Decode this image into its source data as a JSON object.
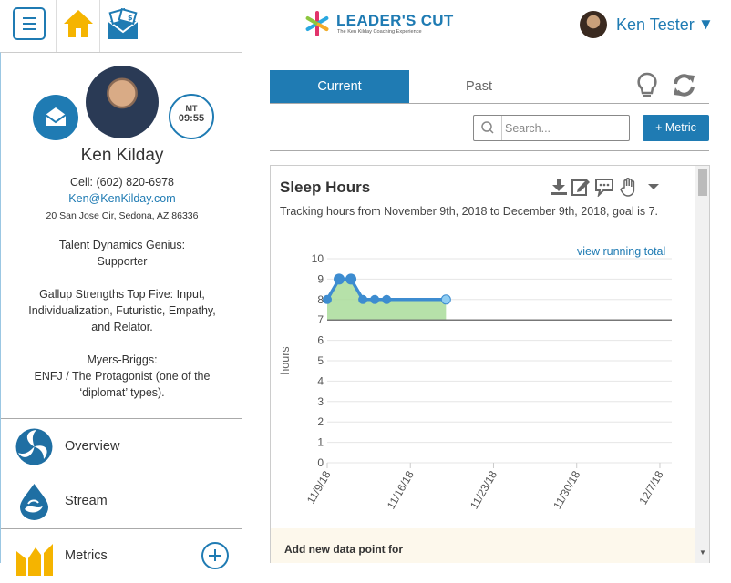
{
  "header": {
    "logo_text": "LEADER'S CUT",
    "logo_sub": "The Ken Kilday Coaching Experience",
    "user_name": "Ken Tester",
    "user_caret": "▼",
    "icons": [
      "menu-icon",
      "home-icon",
      "money-envelope-icon"
    ]
  },
  "profile": {
    "name": "Ken Kilday",
    "clock_tz": "MT",
    "clock_time": "09:55",
    "cell": "Cell: (602) 820-6978",
    "email": "Ken@KenKilday.com",
    "address": "20 San Jose Cir, Sedona, AZ 86336",
    "talent_label": "Talent Dynamics Genius:",
    "talent_value": "Supporter",
    "gallup_1": "Gallup Strengths Top Five:  Input,",
    "gallup_2": "Individualization, Futuristic, Empathy,",
    "gallup_3": "and Relator.",
    "mb_label": "Myers-Briggs:",
    "mb_1": "ENFJ / The Protagonist (one of the",
    "mb_2": "‘diplomat’ types)."
  },
  "nav": {
    "overview": "Overview",
    "stream": "Stream",
    "metrics": "Metrics"
  },
  "tabs": {
    "current": "Current",
    "past": "Past"
  },
  "toolbar": {
    "search_placeholder": "Search...",
    "add_metric": "+ Metric"
  },
  "card": {
    "title": "Sleep Hours",
    "subtitle": "Tracking hours from November 9th, 2018 to December 9th, 2018, goal is 7.",
    "view_running_total": "view running total",
    "add_data_label": "Add new data point for"
  },
  "colors": {
    "accent": "#1f7bb3",
    "line": "#3d8cd0",
    "fill": "#a9dc9a",
    "goal": "#777777"
  },
  "chart_data": {
    "type": "line",
    "title": "",
    "xlabel": "",
    "ylabel": "hours",
    "ylim": [
      0,
      10
    ],
    "yticks": [
      "0",
      "1",
      "2",
      "3",
      "4",
      "5",
      "6",
      "7",
      "8",
      "9",
      "10"
    ],
    "xlim": [
      0,
      29
    ],
    "xticks": [
      {
        "label": "11/9/18",
        "day": 0
      },
      {
        "label": "11/16/18",
        "day": 7
      },
      {
        "label": "11/23/18",
        "day": 14
      },
      {
        "label": "11/30/18",
        "day": 21
      },
      {
        "label": "12/7/18",
        "day": 28
      }
    ],
    "goal": 7,
    "series": [
      {
        "x": [
          "11/9/18",
          "11/10/18",
          "11/11/18",
          "11/12/18",
          "11/13/18",
          "11/14/18",
          "11/19/18"
        ],
        "days": [
          0,
          1,
          2,
          3,
          4,
          5,
          10
        ],
        "values": [
          8,
          9,
          9,
          8,
          8,
          8,
          8
        ]
      }
    ],
    "grid": true
  }
}
